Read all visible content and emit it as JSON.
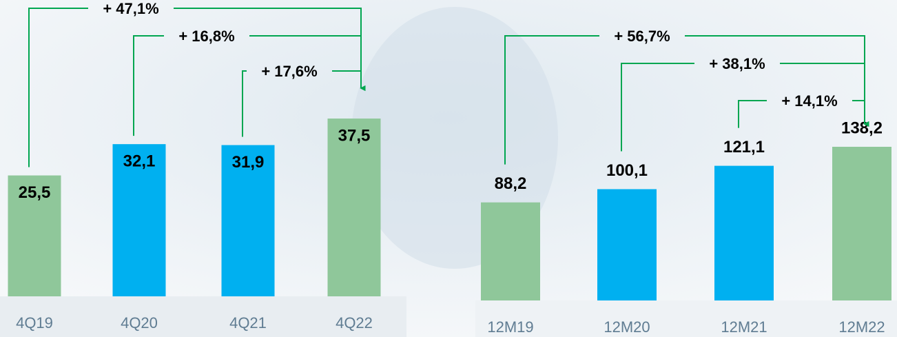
{
  "chart_data": [
    {
      "type": "bar",
      "categories": [
        "4Q19",
        "4Q20",
        "4Q21",
        "4Q22"
      ],
      "values": [
        25.5,
        32.1,
        31.9,
        37.5
      ],
      "value_labels": [
        "25,5",
        "32,1",
        "31,9",
        "37,5"
      ],
      "colors": [
        "#8fc79a",
        "#00b0f0",
        "#00b0f0",
        "#8fc79a"
      ],
      "annotations": [
        "+ 47,1%",
        "+ 16,8%",
        "+ 17,6%"
      ]
    },
    {
      "type": "bar",
      "categories": [
        "12M19",
        "12M20",
        "12M21",
        "12M22"
      ],
      "values": [
        88.2,
        100.1,
        121.1,
        138.2
      ],
      "value_labels": [
        "88,2",
        "100,1",
        "121,1",
        "138,2"
      ],
      "colors": [
        "#8fc79a",
        "#00b0f0",
        "#00b0f0",
        "#8fc79a"
      ],
      "annotations": [
        "+ 56,7%",
        "+ 38,1%",
        "+ 14,1%"
      ]
    }
  ]
}
